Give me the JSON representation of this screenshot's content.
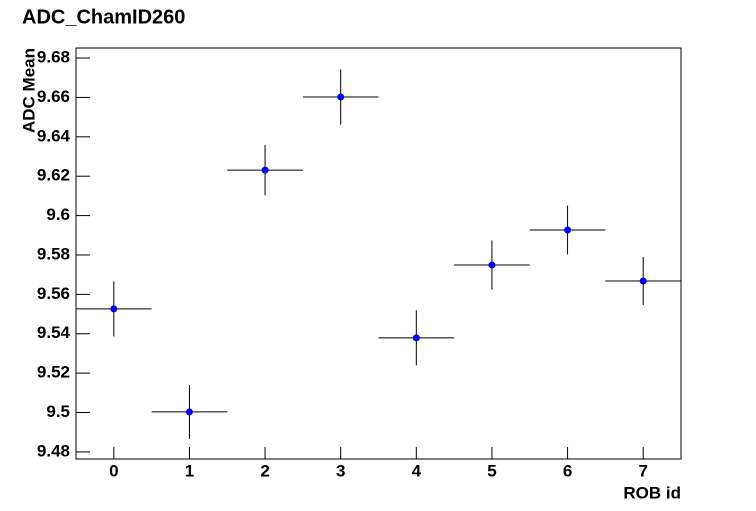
{
  "chart_data": {
    "type": "scatter",
    "title": "ADC_ChamID260",
    "x_label": "ROB id",
    "y_label": "ADC Mean",
    "x": [
      0,
      1,
      2,
      3,
      4,
      5,
      6,
      7
    ],
    "xerr": [
      0.5,
      0.5,
      0.5,
      0.5,
      0.5,
      0.5,
      0.5,
      0.5
    ],
    "values": [
      9.5526,
      9.5003,
      9.6231,
      9.6602,
      9.5379,
      9.5749,
      9.5927,
      9.5668
    ],
    "yerr": [
      0.014,
      0.0137,
      0.0127,
      0.014,
      0.014,
      0.0125,
      0.0124,
      0.0122
    ],
    "color": "#0000ff",
    "xlim": [
      -0.5,
      7.5
    ],
    "xticks": [
      0,
      1,
      2,
      3,
      4,
      5,
      6,
      7
    ],
    "ylim": [
      9.4764,
      9.6851
    ],
    "yticks": [
      9.48,
      9.5,
      9.52,
      9.54,
      9.56,
      9.58,
      9.6,
      9.62,
      9.64,
      9.66,
      9.68
    ]
  }
}
